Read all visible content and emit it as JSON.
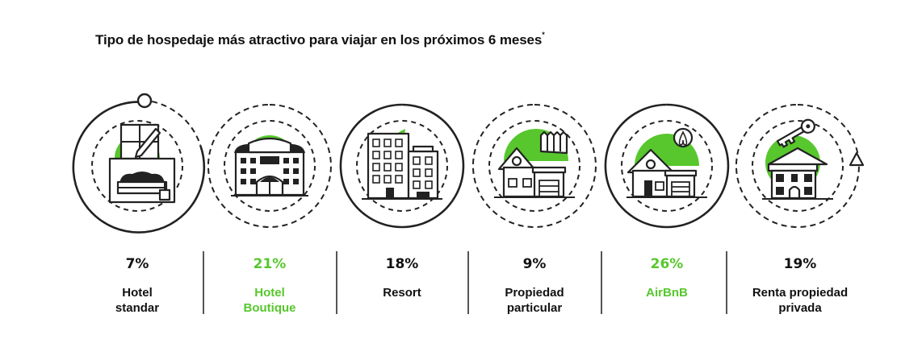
{
  "title": "Tipo de hospedaje más atractivo para viajar en los próximos 6 meses",
  "title_mark": "*",
  "colors": {
    "accent": "#57c72d",
    "text": "#111111",
    "line": "#222222"
  },
  "items": [
    {
      "percent": "7%",
      "label_1": "Hotel",
      "label_2": "standar",
      "highlight": false,
      "icon": "hotel-room-icon"
    },
    {
      "percent": "21%",
      "label_1": "Hotel",
      "label_2": "Boutique",
      "highlight": true,
      "icon": "boutique-hotel-icon"
    },
    {
      "percent": "18%",
      "label_1": "Resort",
      "label_2": "",
      "highlight": false,
      "icon": "resort-buildings-icon"
    },
    {
      "percent": "9%",
      "label_1": "Propiedad",
      "label_2": "particular",
      "highlight": false,
      "icon": "house-fence-icon"
    },
    {
      "percent": "26%",
      "label_1": "AirBnB",
      "label_2": "",
      "highlight": true,
      "icon": "airbnb-house-icon"
    },
    {
      "percent": "19%",
      "label_1": "Renta propiedad",
      "label_2": "privada",
      "highlight": false,
      "icon": "house-key-icon"
    }
  ]
}
